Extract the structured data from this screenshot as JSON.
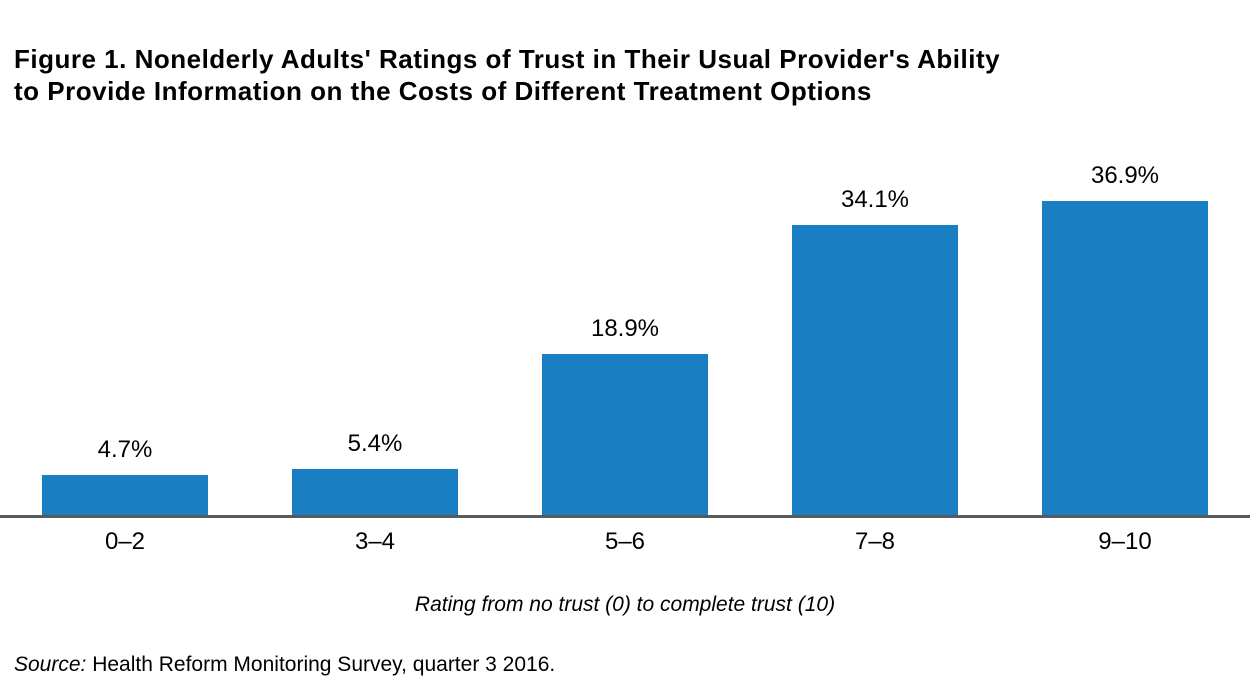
{
  "title": {
    "line1": "Figure 1. Nonelderly Adults' Ratings of Trust in Their Usual Provider's Ability",
    "line2": "to Provide Information on the Costs of Different Treatment Options"
  },
  "chart_data": {
    "type": "bar",
    "categories": [
      "0–2",
      "3–4",
      "5–6",
      "7–8",
      "9–10"
    ],
    "values": [
      4.7,
      5.4,
      18.9,
      34.1,
      36.9
    ],
    "value_labels": [
      "4.7%",
      "5.4%",
      "18.9%",
      "34.1%",
      "36.9%"
    ],
    "title": "Figure 1. Nonelderly Adults' Ratings of Trust in Their Usual Provider's Ability to Provide Information on the Costs of Different Treatment Options",
    "xlabel": "Rating from no trust (0) to complete trust (10)",
    "ylabel": "",
    "ylim": [
      0,
      40
    ],
    "grid": false,
    "legend": false,
    "bar_color": "#1a7ec2",
    "axis_color": "#58595b",
    "label_color": "#000000"
  },
  "source_note": {
    "prefix": "Source:",
    "text": " Health Reform Monitoring Survey, quarter 3 2016."
  }
}
